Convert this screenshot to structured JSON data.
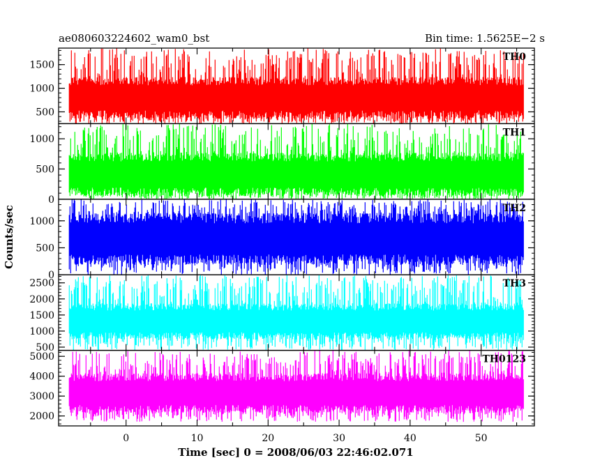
{
  "header": {
    "left": "ae080603224602_wam0_bst",
    "right": "Bin time: 1.5625E−2 s"
  },
  "chart_data": {
    "type": "line",
    "xlabel": "Time [sec] 0 = 2008/06/03 22:46:02.071",
    "ylabel": "Counts/sec",
    "xlim": [
      -9.5,
      57.5
    ],
    "data_x_range": [
      -8,
      56
    ],
    "bin_time": 0.015625,
    "xticks": [
      0,
      10,
      20,
      30,
      40,
      50
    ],
    "xtick_labels": [
      "0",
      "10",
      "20",
      "30",
      "40",
      "50"
    ],
    "series": [
      {
        "name": "TH0",
        "color": "#ff0000",
        "ylim": [
          250,
          1850
        ],
        "yticks": [
          500,
          1000,
          1500
        ],
        "ytick_labels": [
          "500",
          "1000",
          "1500"
        ],
        "band_lo": 440,
        "band_hi": 1150,
        "spike_min": 240,
        "spike_max": 1850,
        "mean": 850
      },
      {
        "name": "TH1",
        "color": "#00ff00",
        "ylim": [
          0,
          1250
        ],
        "yticks": [
          0,
          500,
          1000
        ],
        "ytick_labels": [
          "0",
          "500",
          "1000"
        ],
        "band_lo": 120,
        "band_hi": 700,
        "spike_min": 0,
        "spike_max": 1250,
        "mean": 420
      },
      {
        "name": "TH2",
        "color": "#0000ff",
        "ylim": [
          0,
          1400
        ],
        "yticks": [
          0,
          500,
          1000
        ],
        "ytick_labels": [
          "0",
          "500",
          "1000"
        ],
        "band_lo": 280,
        "band_hi": 1050,
        "spike_min": 0,
        "spike_max": 1400,
        "mean": 700
      },
      {
        "name": "TH3",
        "color": "#00ffff",
        "ylim": [
          400,
          2750
        ],
        "yticks": [
          500,
          1000,
          1500,
          2000,
          2500
        ],
        "ytick_labels": [
          "500",
          "1000",
          "1500",
          "2000",
          "2500"
        ],
        "band_lo": 850,
        "band_hi": 1750,
        "spike_min": 400,
        "spike_max": 2750,
        "mean": 1300
      },
      {
        "name": "TH0123",
        "color": "#ff00ff",
        "ylim": [
          1500,
          5300
        ],
        "yticks": [
          2000,
          3000,
          4000,
          5000
        ],
        "ytick_labels": [
          "2000",
          "3000",
          "4000",
          "5000"
        ],
        "band_lo": 2350,
        "band_hi": 3950,
        "spike_min": 1700,
        "spike_max": 5300,
        "mean": 3200
      }
    ]
  }
}
